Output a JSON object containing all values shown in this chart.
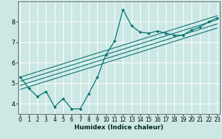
{
  "xlabel": "Humidex (Indice chaleur)",
  "bg_color": "#cce8e4",
  "grid_color": "#ffffff",
  "line_color": "#007070",
  "marker_color": "#007070",
  "x_ticks": [
    0,
    1,
    2,
    3,
    4,
    5,
    6,
    7,
    8,
    9,
    10,
    11,
    12,
    13,
    14,
    15,
    16,
    17,
    18,
    19,
    20,
    21,
    22,
    23
  ],
  "y_ticks": [
    4,
    5,
    6,
    7,
    8
  ],
  "xlim": [
    -0.3,
    23.3
  ],
  "ylim": [
    3.5,
    9.0
  ],
  "data_x": [
    0,
    1,
    2,
    3,
    4,
    5,
    6,
    7,
    8,
    9,
    10,
    11,
    12,
    13,
    14,
    15,
    16,
    17,
    18,
    19,
    20,
    21,
    22,
    23
  ],
  "data_y": [
    5.3,
    4.75,
    4.35,
    4.6,
    3.85,
    4.25,
    3.75,
    3.75,
    4.5,
    5.3,
    6.4,
    7.05,
    8.6,
    7.8,
    7.5,
    7.45,
    7.55,
    7.45,
    7.35,
    7.35,
    7.6,
    7.75,
    8.0,
    8.2
  ],
  "line1_start": 5.3,
  "line1_end": 8.3,
  "line2_start": 5.1,
  "line2_end": 8.1,
  "line3_start": 4.9,
  "line3_end": 7.9,
  "line4_start": 4.7,
  "line4_end": 7.7
}
